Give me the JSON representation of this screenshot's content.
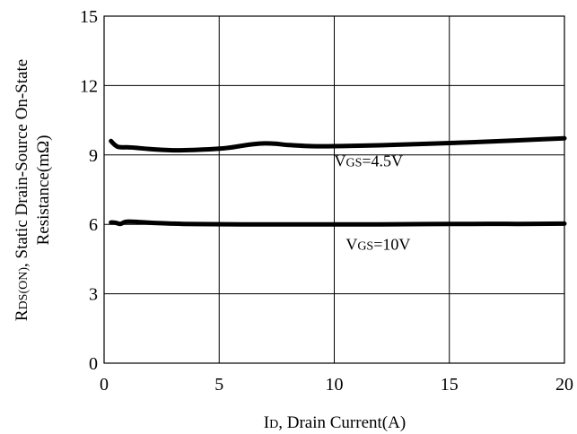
{
  "chart_data": {
    "type": "line",
    "title": "",
    "xlabel": "ID, Drain Current(A)",
    "ylabel_line1": "RDS(ON), Static Drain-Source On-State",
    "ylabel_line2": "Resistance(mΩ)",
    "xlim": [
      0,
      20
    ],
    "ylim": [
      0,
      15
    ],
    "xticks": [
      0,
      5,
      10,
      15,
      20
    ],
    "yticks": [
      0,
      3,
      6,
      9,
      12,
      15
    ],
    "xtick_labels": [
      "0",
      "5",
      "10",
      "15",
      "20"
    ],
    "ytick_labels": [
      "0",
      "3",
      "6",
      "9",
      "12",
      "15"
    ],
    "grid": true,
    "series": [
      {
        "label": "VGS=4.5V",
        "x": [
          0.3,
          0.45,
          0.6,
          0.8,
          1.0,
          1.5,
          2.0,
          3.0,
          4.0,
          5.0,
          5.5,
          6.0,
          6.5,
          7.0,
          7.5,
          8.0,
          9.0,
          10.0,
          12.0,
          14.0,
          16.0,
          18.0,
          20.0
        ],
        "y": [
          9.6,
          9.45,
          9.35,
          9.33,
          9.33,
          9.3,
          9.25,
          9.2,
          9.22,
          9.27,
          9.32,
          9.4,
          9.47,
          9.5,
          9.48,
          9.43,
          9.38,
          9.38,
          9.42,
          9.48,
          9.55,
          9.63,
          9.72
        ]
      },
      {
        "label": "VGS=10V",
        "x": [
          0.3,
          0.5,
          0.7,
          0.9,
          1.1,
          1.5,
          2.0,
          3.0,
          4.0,
          6.0,
          8.0,
          10.0,
          12.0,
          14.0,
          16.0,
          18.0,
          20.0
        ],
        "y": [
          6.08,
          6.07,
          6.02,
          6.1,
          6.12,
          6.1,
          6.07,
          6.03,
          6.01,
          6.0,
          6.0,
          6.0,
          6.0,
          6.01,
          6.02,
          6.02,
          6.03
        ]
      }
    ],
    "annotations": [
      {
        "text": "VGS=4.5V",
        "prefix": "V",
        "sub": "GS",
        "suffix": "=4.5V",
        "x": 10.0,
        "y": 8.5
      },
      {
        "text": "VGS=10V",
        "prefix": "V",
        "sub": "GS",
        "suffix": "=10V",
        "x": 10.5,
        "y": 4.9
      }
    ]
  }
}
